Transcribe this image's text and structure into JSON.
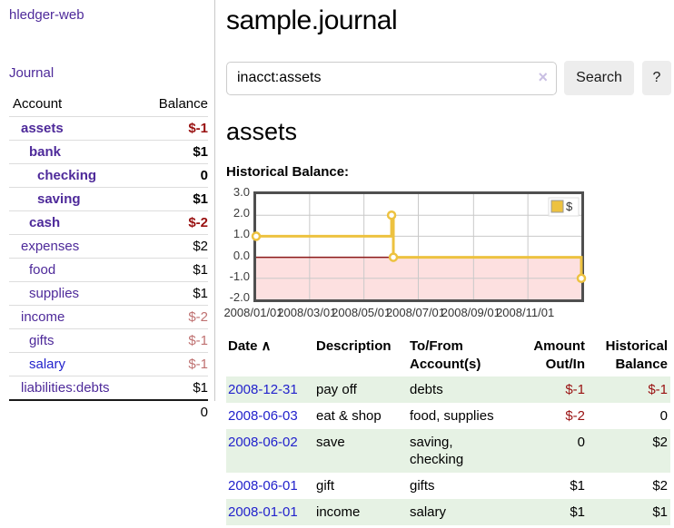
{
  "app_title": "hledger-web",
  "colors": {
    "link_purple": "#4e2a9a",
    "link_blue": "#2222cc",
    "negative_strong": "#991111",
    "negative_soft": "#bf7171",
    "row_green": "#e6f2e4",
    "chart_series": "#EDC240"
  },
  "sidebar": {
    "journal_link": "Journal",
    "accounts": {
      "header_account": "Account",
      "header_balance": "Balance",
      "rows": [
        {
          "name": "assets",
          "balance": "$-1",
          "depth": 1,
          "bold": true,
          "balance_class": "neg",
          "name_class": ""
        },
        {
          "name": "bank",
          "balance": "$1",
          "depth": 2,
          "bold": true,
          "balance_class": "",
          "name_class": ""
        },
        {
          "name": "checking",
          "balance": "0",
          "depth": 3,
          "bold": true,
          "balance_class": "",
          "name_class": ""
        },
        {
          "name": "saving",
          "balance": "$1",
          "depth": 3,
          "bold": true,
          "balance_class": "",
          "name_class": ""
        },
        {
          "name": "cash",
          "balance": "$-2",
          "depth": 2,
          "bold": true,
          "balance_class": "neg",
          "name_class": ""
        },
        {
          "name": "expenses",
          "balance": "$2",
          "depth": 1,
          "bold": false,
          "balance_class": "",
          "name_class": ""
        },
        {
          "name": "food",
          "balance": "$1",
          "depth": 2,
          "bold": false,
          "balance_class": "",
          "name_class": ""
        },
        {
          "name": "supplies",
          "balance": "$1",
          "depth": 2,
          "bold": false,
          "balance_class": "",
          "name_class": ""
        },
        {
          "name": "income",
          "balance": "$-2",
          "depth": 1,
          "bold": false,
          "balance_class": "soft",
          "name_class": ""
        },
        {
          "name": "gifts",
          "balance": "$-1",
          "depth": 2,
          "bold": false,
          "balance_class": "soft",
          "name_class": ""
        },
        {
          "name": "salary",
          "balance": "$-1",
          "depth": 2,
          "bold": false,
          "balance_class": "soft",
          "name_class": "blue"
        },
        {
          "name": "liabilities:debts",
          "balance": "$1",
          "depth": 1,
          "bold": false,
          "balance_class": "",
          "name_class": ""
        }
      ],
      "total": "0"
    }
  },
  "main": {
    "title": "sample.journal",
    "search": {
      "value": "inacct:assets",
      "clear_icon": "×",
      "button_label": "Search",
      "help_label": "?"
    },
    "account_heading": "assets",
    "chart_title": "Historical Balance:",
    "register": {
      "headers": [
        {
          "label": "Date",
          "sort_icon": "∧",
          "align": "left",
          "sortable": true
        },
        {
          "label": "Description",
          "align": "left",
          "sortable": false
        },
        {
          "label": "To/From Account(s)",
          "align": "left",
          "sortable": false
        },
        {
          "label": "Amount Out/In",
          "align": "right",
          "sortable": false
        },
        {
          "label": "Historical Balance",
          "align": "right",
          "sortable": false
        }
      ],
      "rows": [
        {
          "date": "2008-12-31",
          "description": "pay off",
          "accounts": "debts",
          "amount": "$-1",
          "amount_class": "neg",
          "balance": "$-1",
          "balance_class": "neg",
          "shaded": true
        },
        {
          "date": "2008-06-03",
          "description": "eat & shop",
          "accounts": "food, supplies",
          "amount": "$-2",
          "amount_class": "neg",
          "balance": "0",
          "balance_class": "",
          "shaded": false
        },
        {
          "date": "2008-06-02",
          "description": "save",
          "accounts": "saving, checking",
          "amount": "0",
          "amount_class": "",
          "balance": "$2",
          "balance_class": "",
          "shaded": true
        },
        {
          "date": "2008-06-01",
          "description": "gift",
          "accounts": "gifts",
          "amount": "$1",
          "amount_class": "",
          "balance": "$2",
          "balance_class": "",
          "shaded": false
        },
        {
          "date": "2008-01-01",
          "description": "income",
          "accounts": "salary",
          "amount": "$1",
          "amount_class": "",
          "balance": "$1",
          "balance_class": "",
          "shaded": true
        }
      ]
    }
  },
  "chart_data": {
    "type": "line",
    "step": true,
    "title": "Historical Balance:",
    "series": [
      {
        "name": "$",
        "color": "#EDC240",
        "points": [
          [
            "2008/01/01",
            1.0
          ],
          [
            "2008/06/01",
            2.0
          ],
          [
            "2008/06/03",
            0.0
          ],
          [
            "2008/12/31",
            -1.0
          ]
        ]
      }
    ],
    "x_range": [
      "2008/01/01",
      "2008/12/31"
    ],
    "ylim": [
      -2.0,
      3.0
    ],
    "yticks": [
      3.0,
      2.0,
      1.0,
      0.0,
      -1.0,
      -2.0
    ],
    "xticks": [
      "2008/01/01",
      "2008/03/01",
      "2008/05/01",
      "2008/07/01",
      "2008/09/01",
      "2008/11/01"
    ],
    "negative_region_color": "#fde0e0",
    "zero_line_color": "#8b1a1a",
    "grid_color": "#c9c9c9",
    "legend_position": "top-right",
    "grid": true
  }
}
